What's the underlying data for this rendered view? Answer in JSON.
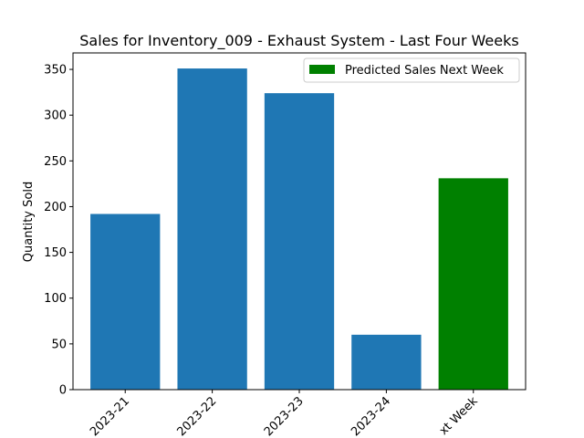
{
  "chart_data": {
    "type": "bar",
    "title": "Sales for Inventory_009 - Exhaust System - Last Four Weeks",
    "xlabel": "",
    "ylabel": "Quantity Sold",
    "categories": [
      "2023-21",
      "2023-22",
      "2023-23",
      "2023-24",
      "Next Week"
    ],
    "category_labels": [
      "2023-21",
      "2023-22",
      "2023-23",
      "2023-24",
      "xt Week"
    ],
    "values": [
      192,
      351,
      324,
      60,
      231
    ],
    "bar_colors": [
      "#1f77b4",
      "#1f77b4",
      "#1f77b4",
      "#1f77b4",
      "#008000"
    ],
    "ylim": [
      0,
      368
    ],
    "yticks": [
      0,
      50,
      100,
      150,
      200,
      250,
      300,
      350
    ],
    "grid": false,
    "legend": {
      "placement": "top-right",
      "entries": [
        {
          "label": "Predicted Sales Next Week",
          "color": "#008000"
        }
      ]
    }
  }
}
